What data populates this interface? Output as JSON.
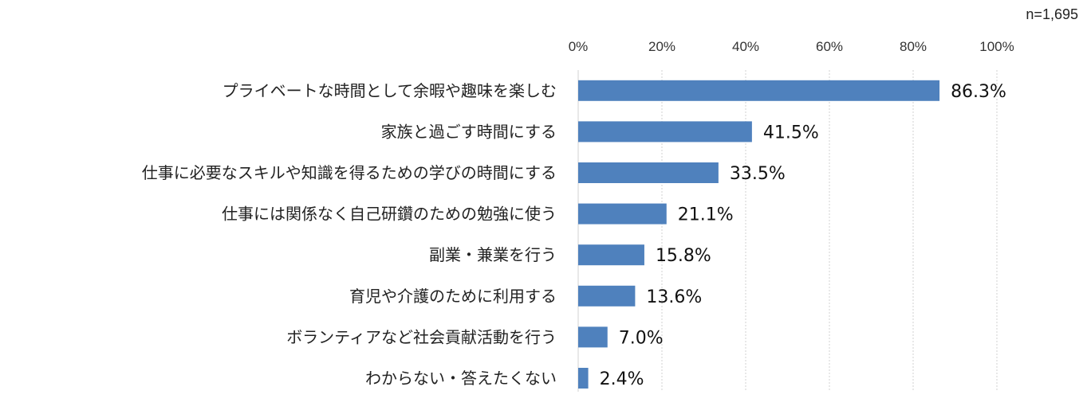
{
  "chart_data": {
    "type": "bar",
    "orientation": "horizontal",
    "categories": [
      "プライベートな時間として余暇や趣味を楽しむ",
      "家族と過ごす時間にする",
      "仕事に必要なスキルや知識を得るための学びの時間にする",
      "仕事には関係なく自己研鑽のための勉強に使う",
      "副業・兼業を行う",
      "育児や介護のために利用する",
      "ボランティアなど社会貢献活動を行う",
      "わからない・答えたくない"
    ],
    "values": [
      86.3,
      41.5,
      33.5,
      21.1,
      15.8,
      13.6,
      7.0,
      2.4
    ],
    "value_labels": [
      "86.3%",
      "41.5%",
      "33.5%",
      "21.1%",
      "15.8%",
      "13.6%",
      "7.0%",
      "2.4%"
    ],
    "xlim": [
      0,
      100
    ],
    "xticks": [
      0,
      20,
      40,
      60,
      80,
      100
    ],
    "xtick_labels": [
      "0%",
      "20%",
      "40%",
      "60%",
      "80%",
      "100%"
    ],
    "axis_position": "top",
    "grid": true,
    "legend": "none",
    "sample_size": "n=1,695",
    "bar_color": "#4f81bd"
  }
}
